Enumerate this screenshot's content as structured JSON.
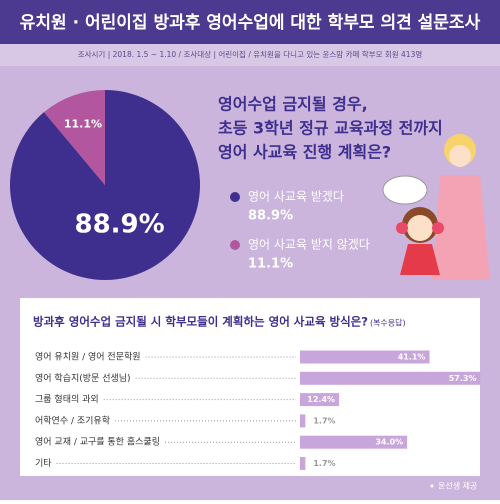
{
  "header": {
    "title": "유치원 · 어린이집 방과후 영어수업에 대한 학부모 의견 설문조사",
    "subtitle": "조사시기 | 2018. 1.5 ~ 1.10 / 조사대상 | 어린이집 / 유치원을 다니고 있는 윤스맘 카페 학부모 회원 413명"
  },
  "chart_data": [
    {
      "type": "pie",
      "title": [
        "영어수업 금지될 경우,",
        "초등 3학년 정규 교육과정 전까지",
        "영어 사교육 진행 계획은?"
      ],
      "categories": [
        "영어 사교육 받겠다",
        "영어 사교육 받지 않겠다"
      ],
      "values": [
        88.9,
        11.1
      ],
      "value_labels": [
        "88.9%",
        "11.1%"
      ],
      "colors": [
        "#3e2f8e",
        "#b2579f"
      ]
    },
    {
      "type": "bar",
      "orientation": "horizontal",
      "title": "방과후 영어수업 금지될 시 학부모들이 계획하는 영어 사교육 방식은?",
      "subtitle": "(복수응답)",
      "categories": [
        "영어 유치원 / 영어 전문학원",
        "영어 학습지(방문 선생님)",
        "그룹 형태의 과외",
        "어학연수 / 조기유학",
        "영어 교재 / 교구를 통한 홈스쿨링",
        "기타"
      ],
      "values": [
        41.1,
        57.3,
        12.4,
        1.7,
        34.0,
        1.7
      ],
      "value_labels": [
        "41.1%",
        "57.3%",
        "12.4%",
        "1.7%",
        "34.0%",
        "1.7%"
      ],
      "color": "#c8a6dc"
    }
  ],
  "source": "윤선생 제공"
}
